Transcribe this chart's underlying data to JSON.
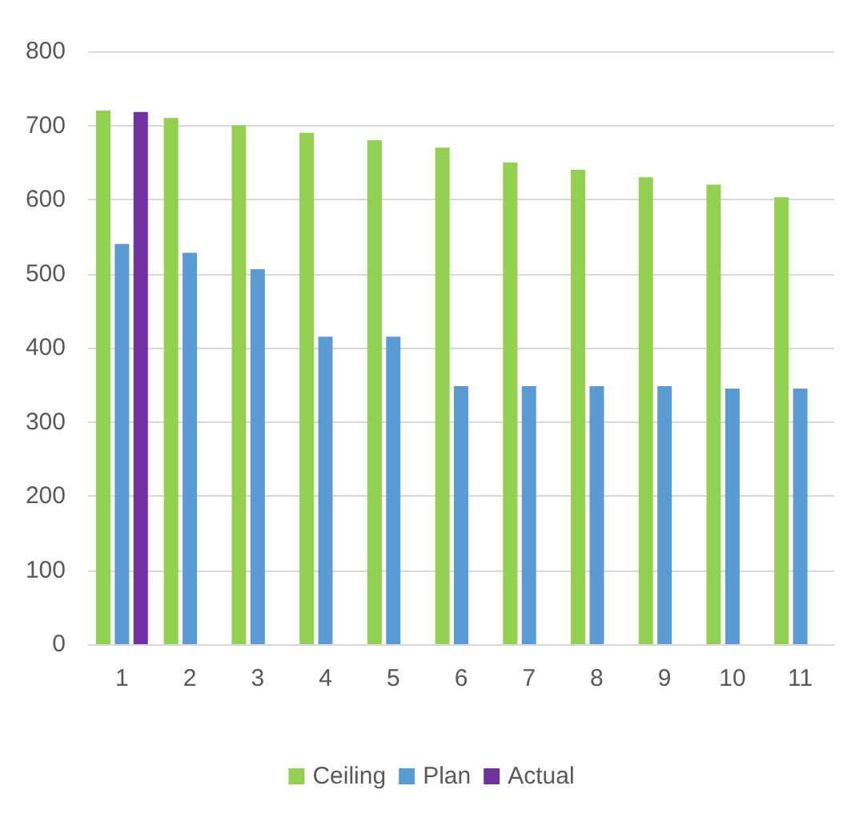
{
  "chart_data": {
    "type": "bar",
    "categories": [
      "1",
      "2",
      "3",
      "4",
      "5",
      "6",
      "7",
      "8",
      "9",
      "10",
      "11"
    ],
    "series": [
      {
        "name": "Ceiling",
        "color": "#92d050",
        "values": [
          720,
          710,
          700,
          690,
          680,
          670,
          650,
          640,
          630,
          620,
          603
        ]
      },
      {
        "name": "Plan",
        "color": "#5b9bd5",
        "values": [
          540,
          528,
          506,
          415,
          415,
          348,
          348,
          348,
          348,
          345,
          345
        ]
      },
      {
        "name": "Actual",
        "color": "#7030a0",
        "values": [
          718,
          null,
          null,
          null,
          null,
          null,
          null,
          null,
          null,
          null,
          null
        ]
      }
    ],
    "ylim": [
      0,
      800
    ],
    "yticks": [
      0,
      100,
      200,
      300,
      400,
      500,
      600,
      700,
      800
    ],
    "grid": "y",
    "legend": "bottom"
  }
}
